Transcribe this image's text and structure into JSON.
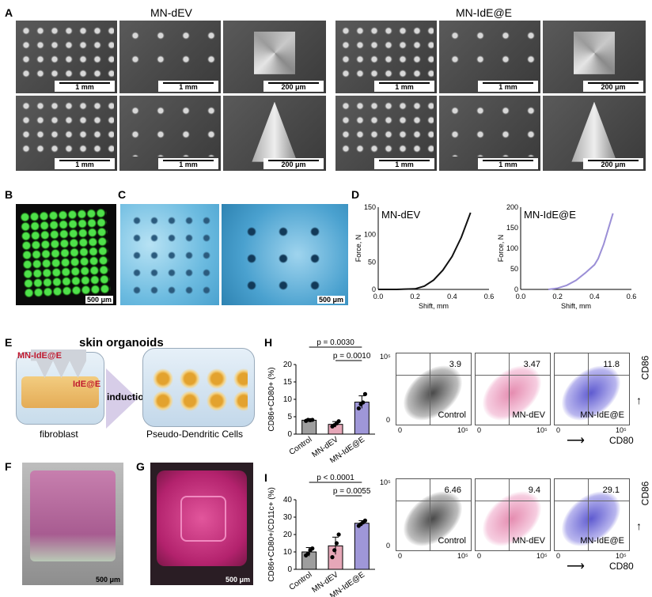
{
  "panels": {
    "A": "A",
    "B": "B",
    "C": "C",
    "D": "D",
    "E": "E",
    "F": "F",
    "G": "G",
    "H": "H",
    "I": "I"
  },
  "panelA": {
    "group_left": "MN-dEV",
    "group_right": "MN-IdE@E",
    "scales": [
      "1 mm",
      "1 mm",
      "200 μm"
    ]
  },
  "panelB": {
    "scale": "500 μm"
  },
  "panelC": {
    "scale": "500 μm"
  },
  "panelD": {
    "charts": [
      {
        "title": "MN-dEV",
        "xlabel": "Shift, mm",
        "ylabel": "Force, N",
        "xticks": [
          "0.0",
          "0.2",
          "0.4",
          "0.6"
        ],
        "yticks": [
          "0",
          "50",
          "100",
          "150"
        ],
        "color": "#111111"
      },
      {
        "title": "MN-IdE@E",
        "xlabel": "Shift, mm",
        "ylabel": "Force, N",
        "xticks": [
          "0.0",
          "0.2",
          "0.4",
          "0.6"
        ],
        "yticks": [
          "0",
          "50",
          "100",
          "150",
          "200"
        ],
        "color": "#9b8fd6"
      }
    ]
  },
  "panelE": {
    "title": "skin organoids",
    "mn_label": "MN-IdE@E",
    "ide_label": "IdE@E",
    "arrow_label": "induction",
    "left_caption": "fibroblast",
    "right_caption": "Pseudo-Dendritic Cells"
  },
  "panelF": {
    "scale": "500 μm"
  },
  "panelG": {
    "scale": "500 μm"
  },
  "panelH": {
    "ylabel": "CD86+CD80+ (%)",
    "yticks": [
      "0",
      "5",
      "10",
      "15",
      "20"
    ],
    "categories": [
      "Control",
      "MN-dEV",
      "MN-IdE@E"
    ],
    "p1": "p = 0.0030",
    "p2": "p = 0.0010",
    "flow": [
      {
        "value": "3.9",
        "label": "Control"
      },
      {
        "value": "3.47",
        "label": "MN-dEV"
      },
      {
        "value": "11.8",
        "label": "MN-IdE@E"
      }
    ],
    "axis_y": "CD86",
    "axis_x": "CD80"
  },
  "panelI": {
    "ylabel": "CD86+CD80+/CD11c+ (%)",
    "yticks": [
      "0",
      "10",
      "20",
      "30",
      "40"
    ],
    "categories": [
      "Control",
      "MN-dEV",
      "MN-IdE@E"
    ],
    "p1": "p < 0.0001",
    "p2": "p = 0.0055",
    "flow": [
      {
        "value": "6.46",
        "label": "Control"
      },
      {
        "value": "9.4",
        "label": "MN-dEV"
      },
      {
        "value": "29.1",
        "label": "MN-IdE@E"
      }
    ],
    "axis_y": "CD86",
    "axis_x": "CD80"
  },
  "flow_ticks": [
    "0",
    "10^5"
  ],
  "chart_data": [
    {
      "type": "line",
      "title": "MN-dEV",
      "xlabel": "Shift, mm",
      "ylabel": "Force, N",
      "xlim": [
        0,
        0.6
      ],
      "ylim": [
        0,
        150
      ],
      "series": [
        {
          "x": [
            0.0,
            0.1,
            0.2,
            0.25,
            0.3,
            0.35,
            0.4,
            0.45,
            0.5
          ],
          "values": [
            0,
            0,
            1,
            6,
            17,
            35,
            60,
            95,
            140
          ]
        }
      ]
    },
    {
      "type": "line",
      "title": "MN-IdE@E",
      "xlabel": "Shift, mm",
      "ylabel": "Force, N",
      "xlim": [
        0,
        0.6
      ],
      "ylim": [
        0,
        200
      ],
      "series": [
        {
          "x": [
            0.15,
            0.2,
            0.25,
            0.3,
            0.35,
            0.4,
            0.42,
            0.45,
            0.5
          ],
          "values": [
            0,
            3,
            10,
            22,
            40,
            60,
            75,
            110,
            185
          ]
        }
      ]
    },
    {
      "type": "bar",
      "ylabel": "CD86+CD80+ (%)",
      "ylim": [
        0,
        20
      ],
      "categories": [
        "Control",
        "MN-dEV",
        "MN-IdE@E"
      ],
      "values": [
        4.0,
        2.8,
        9.2
      ],
      "errors": [
        0.3,
        0.8,
        1.8
      ],
      "points": [
        [
          3.8,
          4.1,
          4.0,
          4.1
        ],
        [
          2.2,
          2.6,
          3.1,
          3.7
        ],
        [
          7.4,
          8.6,
          9.1,
          11.5
        ]
      ],
      "colors": [
        "#9e9e9e",
        "#e6a7b8",
        "#9f97d8"
      ]
    },
    {
      "type": "bar",
      "ylabel": "CD86+CD80+/CD11c+ (%)",
      "ylim": [
        0,
        40
      ],
      "categories": [
        "Control",
        "MN-dEV",
        "MN-IdE@E"
      ],
      "values": [
        10,
        13.5,
        26.5
      ],
      "errors": [
        2.5,
        5,
        1.5
      ],
      "points": [
        [
          8,
          9,
          11,
          12
        ],
        [
          7,
          11,
          15,
          20
        ],
        [
          25,
          26,
          27,
          28
        ]
      ],
      "colors": [
        "#9e9e9e",
        "#e6a7b8",
        "#9f97d8"
      ]
    }
  ]
}
